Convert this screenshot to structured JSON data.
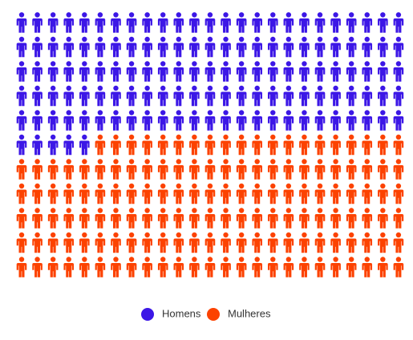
{
  "chart_data": {
    "type": "pictogram",
    "series": [
      {
        "name": "Homens",
        "color": "#3c17e6",
        "values": [
          130
        ]
      },
      {
        "name": "Mulheres",
        "color": "#fc4200",
        "values": [
          145
        ]
      }
    ],
    "legend": "bottom"
  }
}
